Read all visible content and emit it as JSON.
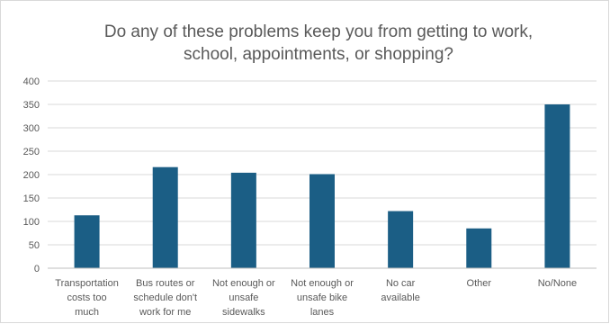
{
  "chart_data": {
    "type": "bar",
    "title": "Do any of these problems keep you from getting to work,\nschool, appointments, or shopping?",
    "xlabel": "",
    "ylabel": "",
    "ylim": [
      0,
      400
    ],
    "y_ticks": [
      0,
      50,
      100,
      150,
      200,
      250,
      300,
      350,
      400
    ],
    "grid": true,
    "legend": "none",
    "bar_color": "#1b5e85",
    "categories": [
      [
        "Transportation",
        "costs too",
        "much"
      ],
      [
        "Bus routes or",
        "schedule don't",
        "work for me"
      ],
      [
        "Not enough or",
        "unsafe",
        "sidewalks"
      ],
      [
        "Not enough or",
        "unsafe bike",
        "lanes"
      ],
      [
        "No car",
        "available"
      ],
      [
        "Other"
      ],
      [
        "No/None"
      ]
    ],
    "values": [
      113,
      216,
      204,
      201,
      122,
      85,
      350
    ]
  }
}
